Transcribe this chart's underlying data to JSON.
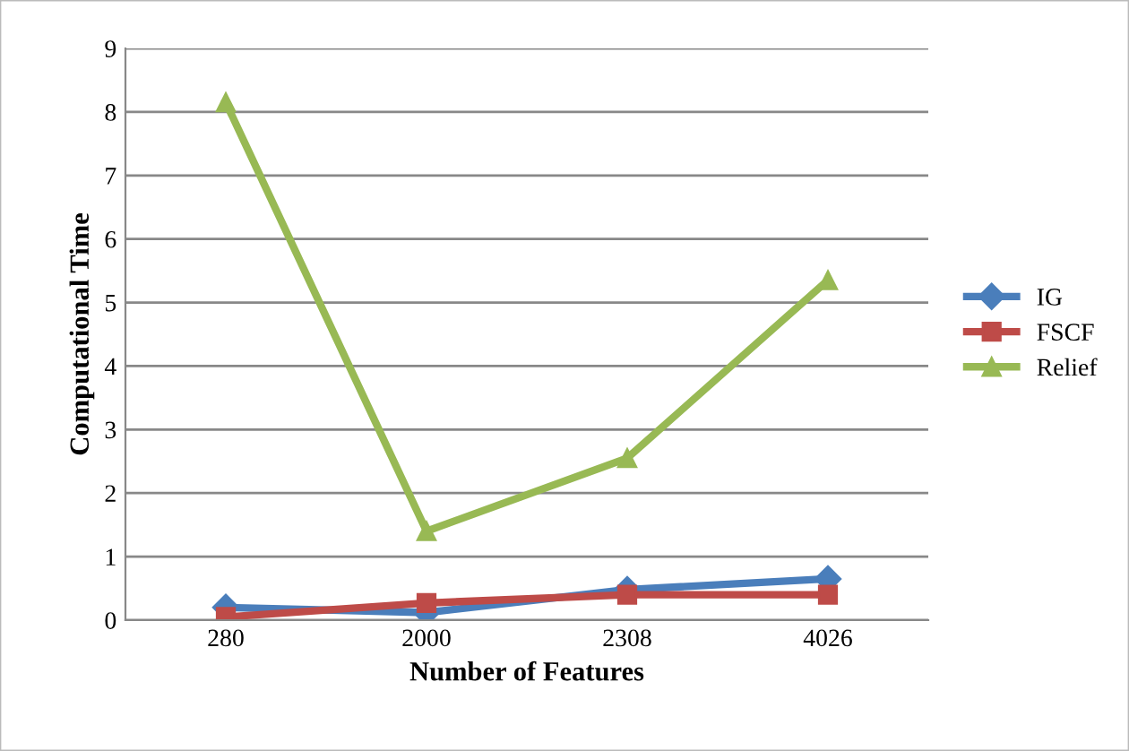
{
  "chart_data": {
    "type": "line",
    "xlabel": "Number of Features",
    "ylabel": "Computational Time",
    "categories": [
      "280",
      "2000",
      "2308",
      "4026"
    ],
    "series": [
      {
        "name": "IG",
        "color": "#4a7ebb",
        "values": [
          0.2,
          0.12,
          0.48,
          0.65
        ],
        "marker": "diamond"
      },
      {
        "name": "FSCF",
        "color": "#be4b48",
        "values": [
          0.05,
          0.27,
          0.4,
          0.4
        ],
        "marker": "square"
      },
      {
        "name": "Relief",
        "color": "#98b954",
        "values": [
          8.15,
          1.4,
          2.55,
          5.35
        ],
        "marker": "triangle"
      }
    ],
    "ylim": [
      0,
      9
    ],
    "yticks": [
      0,
      1,
      2,
      3,
      4,
      5,
      6,
      7,
      8,
      9
    ],
    "grid": "y",
    "legend": "right",
    "line_style": "solid"
  }
}
